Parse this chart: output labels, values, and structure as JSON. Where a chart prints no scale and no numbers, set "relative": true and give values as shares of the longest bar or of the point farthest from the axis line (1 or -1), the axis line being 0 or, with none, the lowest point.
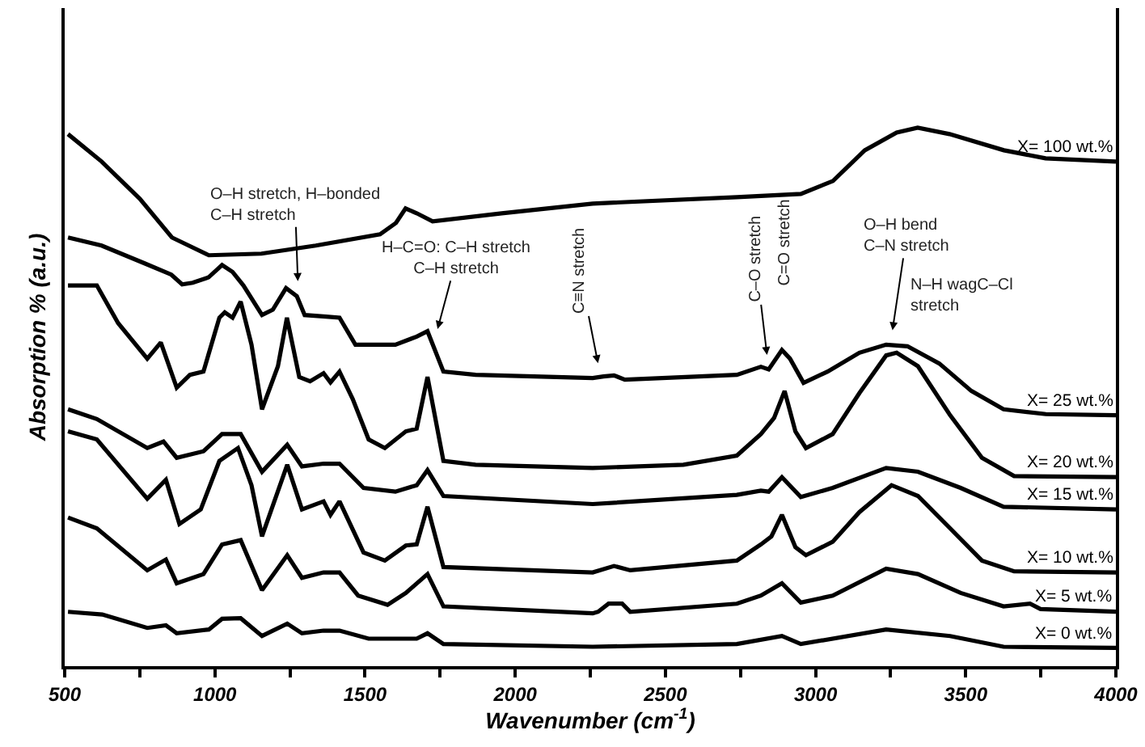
{
  "chart_data": {
    "type": "line",
    "relative": true,
    "xlabel": "Wavenumber (cm$^{-1}$)",
    "ylabel": "Absorption % (a.u.)",
    "xlim": [
      500,
      4000
    ],
    "xticks": [
      500,
      {
        "value": 750,
        "label": null
      },
      1000,
      {
        "value": 1250,
        "label": null
      },
      1500,
      {
        "value": 1750,
        "label": null
      },
      2000,
      {
        "value": 2250,
        "label": null
      },
      2500,
      {
        "value": 2750,
        "label": null
      },
      3000,
      {
        "value": 3250,
        "label": null
      },
      3500,
      {
        "value": 3750,
        "label": null
      },
      4000
    ],
    "grid": false,
    "legend": false,
    "marker": "none",
    "line_style": "solid",
    "series": [
      {
        "name": "X= 100 wt.%",
        "color": "#000000",
        "x": [
          511,
          623,
          750,
          857,
          980,
          1155,
          1336,
          1550,
          1603,
          1635,
          1672,
          1725,
          1955,
          2258,
          2738,
          2951,
          3058,
          3164,
          3270,
          3340,
          3446,
          3627,
          3766,
          4000
        ],
        "values": [
          0.988,
          0.937,
          0.868,
          0.796,
          0.763,
          0.766,
          0.781,
          0.802,
          0.823,
          0.85,
          0.841,
          0.826,
          0.841,
          0.859,
          0.871,
          0.877,
          0.901,
          0.958,
          0.991,
          1.0,
          0.988,
          0.958,
          0.943,
          0.937
        ]
      },
      {
        "name": "X= 25 wt.%",
        "color": "#000000",
        "x": [
          511,
          623,
          766,
          855,
          891,
          926,
          979,
          1024,
          1059,
          1095,
          1157,
          1193,
          1237,
          1273,
          1299,
          1370,
          1415,
          1468,
          1601,
          1672,
          1708,
          1761,
          1868,
          2258,
          2294,
          2329,
          2365,
          2738,
          2818,
          2844,
          2888,
          2915,
          2960,
          3040,
          3146,
          3235,
          3306,
          3412,
          3519,
          3626,
          3767,
          4000
        ],
        "values": [
          0.796,
          0.781,
          0.748,
          0.727,
          0.709,
          0.712,
          0.722,
          0.745,
          0.732,
          0.707,
          0.652,
          0.662,
          0.702,
          0.687,
          0.652,
          0.649,
          0.647,
          0.597,
          0.597,
          0.612,
          0.622,
          0.547,
          0.541,
          0.535,
          0.538,
          0.54,
          0.532,
          0.541,
          0.556,
          0.551,
          0.587,
          0.571,
          0.526,
          0.547,
          0.582,
          0.597,
          0.594,
          0.562,
          0.511,
          0.477,
          0.468,
          0.466
        ]
      },
      {
        "name": "X= 20 wt.%",
        "color": "#000000",
        "x": [
          511,
          607,
          678,
          775,
          820,
          873,
          917,
          962,
          1015,
          1033,
          1059,
          1086,
          1122,
          1157,
          1210,
          1240,
          1281,
          1317,
          1362,
          1385,
          1415,
          1459,
          1512,
          1566,
          1636,
          1672,
          1708,
          1761,
          1868,
          2258,
          2560,
          2738,
          2818,
          2862,
          2897,
          2933,
          2968,
          3057,
          3146,
          3235,
          3270,
          3341,
          3448,
          3554,
          3661,
          4000
        ],
        "values": [
          0.707,
          0.707,
          0.637,
          0.571,
          0.601,
          0.517,
          0.541,
          0.547,
          0.647,
          0.657,
          0.647,
          0.677,
          0.597,
          0.477,
          0.557,
          0.647,
          0.537,
          0.529,
          0.544,
          0.527,
          0.547,
          0.496,
          0.421,
          0.405,
          0.436,
          0.441,
          0.537,
          0.381,
          0.374,
          0.368,
          0.374,
          0.391,
          0.431,
          0.461,
          0.511,
          0.436,
          0.405,
          0.431,
          0.507,
          0.577,
          0.582,
          0.557,
          0.466,
          0.387,
          0.353,
          0.351
        ]
      },
      {
        "name": "X= 15 wt.%",
        "color": "#000000",
        "x": [
          511,
          607,
          775,
          829,
          873,
          962,
          1024,
          1086,
          1157,
          1241,
          1290,
          1362,
          1415,
          1495,
          1601,
          1672,
          1708,
          1761,
          2258,
          2738,
          2818,
          2844,
          2888,
          2951,
          3057,
          3235,
          3341,
          3483,
          3626,
          4000
        ],
        "values": [
          0.477,
          0.459,
          0.405,
          0.417,
          0.387,
          0.399,
          0.431,
          0.431,
          0.361,
          0.411,
          0.371,
          0.376,
          0.376,
          0.331,
          0.324,
          0.336,
          0.364,
          0.316,
          0.301,
          0.318,
          0.326,
          0.324,
          0.351,
          0.314,
          0.331,
          0.368,
          0.361,
          0.331,
          0.296,
          0.291
        ]
      },
      {
        "name": "X= 10 wt.%",
        "color": "#000000",
        "x": [
          511,
          607,
          775,
          837,
          882,
          953,
          1015,
          1077,
          1122,
          1157,
          1241,
          1290,
          1362,
          1385,
          1415,
          1495,
          1566,
          1636,
          1672,
          1708,
          1761,
          2258,
          2329,
          2383,
          2738,
          2818,
          2853,
          2888,
          2933,
          2968,
          3057,
          3146,
          3253,
          3341,
          3448,
          3554,
          3661,
          4000
        ],
        "values": [
          0.436,
          0.421,
          0.311,
          0.346,
          0.264,
          0.291,
          0.381,
          0.405,
          0.336,
          0.241,
          0.374,
          0.291,
          0.306,
          0.281,
          0.306,
          0.211,
          0.196,
          0.224,
          0.226,
          0.296,
          0.184,
          0.174,
          0.186,
          0.178,
          0.196,
          0.226,
          0.241,
          0.281,
          0.221,
          0.206,
          0.231,
          0.286,
          0.336,
          0.316,
          0.256,
          0.196,
          0.176,
          0.174
        ]
      },
      {
        "name": "X= 5 wt.%",
        "color": "#000000",
        "x": [
          511,
          607,
          775,
          837,
          873,
          962,
          1024,
          1086,
          1157,
          1241,
          1290,
          1362,
          1415,
          1477,
          1575,
          1636,
          1708,
          1761,
          2258,
          2276,
          2311,
          2356,
          2383,
          2738,
          2818,
          2888,
          2951,
          3057,
          3235,
          3341,
          3483,
          3626,
          3714,
          3749,
          4000
        ],
        "values": [
          0.276,
          0.256,
          0.178,
          0.198,
          0.154,
          0.171,
          0.226,
          0.234,
          0.141,
          0.206,
          0.164,
          0.174,
          0.174,
          0.131,
          0.114,
          0.136,
          0.171,
          0.111,
          0.098,
          0.101,
          0.116,
          0.116,
          0.101,
          0.116,
          0.131,
          0.154,
          0.118,
          0.131,
          0.181,
          0.171,
          0.136,
          0.111,
          0.116,
          0.106,
          0.101
        ]
      },
      {
        "name": "X= 0 wt.%",
        "color": "#000000",
        "x": [
          511,
          625,
          775,
          837,
          873,
          980,
          1024,
          1086,
          1157,
          1241,
          1290,
          1362,
          1415,
          1512,
          1672,
          1708,
          1761,
          2258,
          2738,
          2888,
          2951,
          3235,
          3448,
          3626,
          4000
        ],
        "values": [
          0.101,
          0.096,
          0.071,
          0.076,
          0.061,
          0.068,
          0.088,
          0.089,
          0.056,
          0.079,
          0.061,
          0.066,
          0.066,
          0.051,
          0.051,
          0.061,
          0.041,
          0.036,
          0.041,
          0.056,
          0.041,
          0.068,
          0.056,
          0.036,
          0.034
        ]
      }
    ],
    "annotations": [
      {
        "text": "O–H stretch, H–bonded\nC–H stretch",
        "x": 1278,
        "y": 0.688
      },
      {
        "text": "H–C=O: C–H stretch\nC–H stretch",
        "x": 1729,
        "y": 0.6
      },
      {
        "text": "C≡N stretch",
        "x": 2285,
        "y": 0.536
      },
      {
        "text": "C–O stretch",
        "x": 2844,
        "y": 0.551
      },
      "C=O stretch",
      {
        "text": "O–H bend\nC–N stretch",
        "x": 3249,
        "y": 0.597
      },
      "N–H wagC–Cl\nstretch"
    ]
  }
}
